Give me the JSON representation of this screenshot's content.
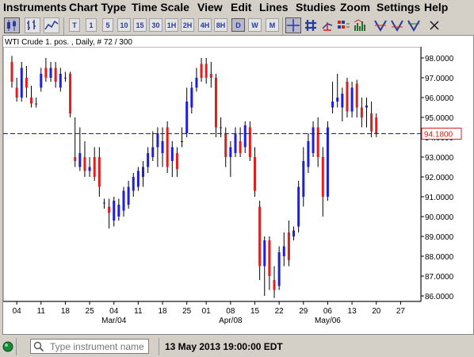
{
  "menu": [
    "Instruments",
    "Chart Type",
    "Time Scale",
    "View",
    "Edit",
    "Lines",
    "Studies",
    "Zoom",
    "Settings",
    "Help"
  ],
  "toolbar": {
    "timeframes": [
      "T",
      "1",
      "5",
      "10",
      "15",
      "30",
      "1H",
      "2H",
      "4H",
      "8H",
      "D",
      "W",
      "M"
    ],
    "active_timeframe": "D"
  },
  "chart": {
    "header": "WTI Crude 1. pos. , Daily, # 72 / 300",
    "price_label": "94.1800",
    "last_price": 94.18
  },
  "status": {
    "search_placeholder": "Type instrument name",
    "datetime": "13 May 2013 19:00:00 EDT"
  },
  "chart_data": {
    "type": "candlestick",
    "ylim": [
      85.6,
      98.4
    ],
    "y_ticks": [
      86,
      87,
      88,
      89,
      90,
      91,
      92,
      93,
      94,
      95,
      96,
      97,
      98
    ],
    "y_tick_labels": [
      "86.0000",
      "87.0000",
      "88.0000",
      "89.0000",
      "90.0000",
      "91.0000",
      "92.0000",
      "93.0000",
      "94.0000",
      "95.0000",
      "96.0000",
      "97.0000",
      "98.0000"
    ],
    "x_tick_labels": [
      {
        "label": "04",
        "index": 1
      },
      {
        "label": "11",
        "index": 6
      },
      {
        "label": "18",
        "index": 11
      },
      {
        "label": "25",
        "index": 16
      },
      {
        "label": "04",
        "index": 21
      },
      {
        "label": "11",
        "index": 26
      },
      {
        "label": "18",
        "index": 31
      },
      {
        "label": "25",
        "index": 36
      },
      {
        "label": "01",
        "index": 40
      },
      {
        "label": "08",
        "index": 45
      },
      {
        "label": "15",
        "index": 50
      },
      {
        "label": "22",
        "index": 55
      },
      {
        "label": "29",
        "index": 60
      },
      {
        "label": "06",
        "index": 65
      },
      {
        "label": "13",
        "index": 70
      },
      {
        "label": "20",
        "index": 75
      },
      {
        "label": "27",
        "index": 80
      }
    ],
    "month_labels": [
      {
        "label": "Mar/04",
        "index": 21
      },
      {
        "label": "Apr/08",
        "index": 45
      },
      {
        "label": "May/06",
        "index": 65
      }
    ],
    "candles": [
      {
        "o": 97.8,
        "h": 98.1,
        "l": 96.5,
        "c": 96.8
      },
      {
        "o": 96.5,
        "h": 97.0,
        "l": 95.8,
        "c": 96.0
      },
      {
        "o": 96.0,
        "h": 97.8,
        "l": 95.8,
        "c": 97.5
      },
      {
        "o": 97.0,
        "h": 97.6,
        "l": 96.0,
        "c": 96.5
      },
      {
        "o": 96.0,
        "h": 96.6,
        "l": 95.5,
        "c": 95.7
      },
      {
        "o": 95.7,
        "h": 96.0,
        "l": 95.5,
        "c": 95.7
      },
      {
        "o": 96.5,
        "h": 97.5,
        "l": 96.3,
        "c": 97.2
      },
      {
        "o": 97.5,
        "h": 98.0,
        "l": 96.8,
        "c": 97.0
      },
      {
        "o": 97.0,
        "h": 97.8,
        "l": 96.8,
        "c": 97.5
      },
      {
        "o": 97.5,
        "h": 97.8,
        "l": 96.5,
        "c": 96.8
      },
      {
        "o": 96.5,
        "h": 97.5,
        "l": 96.3,
        "c": 97.2
      },
      {
        "o": 97.0,
        "h": 97.3,
        "l": 96.8,
        "c": 97.0
      },
      {
        "o": 97.2,
        "h": 97.3,
        "l": 95.0,
        "c": 95.2
      },
      {
        "o": 93.0,
        "h": 95.0,
        "l": 92.5,
        "c": 92.8
      },
      {
        "o": 92.5,
        "h": 94.5,
        "l": 92.3,
        "c": 93.2
      },
      {
        "o": 93.0,
        "h": 93.8,
        "l": 92.0,
        "c": 92.3
      },
      {
        "o": 92.3,
        "h": 93.0,
        "l": 92.0,
        "c": 92.5
      },
      {
        "o": 93.0,
        "h": 93.5,
        "l": 91.8,
        "c": 92.0
      },
      {
        "o": 93.0,
        "h": 93.5,
        "l": 91.0,
        "c": 91.5
      },
      {
        "o": 90.7,
        "h": 90.9,
        "l": 90.4,
        "c": 90.7
      },
      {
        "o": 90.5,
        "h": 90.9,
        "l": 89.4,
        "c": 90.2
      },
      {
        "o": 89.8,
        "h": 91.0,
        "l": 89.5,
        "c": 90.8
      },
      {
        "o": 90.0,
        "h": 90.9,
        "l": 89.8,
        "c": 90.6
      },
      {
        "o": 90.3,
        "h": 91.5,
        "l": 90.0,
        "c": 91.3
      },
      {
        "o": 90.6,
        "h": 91.8,
        "l": 90.4,
        "c": 91.5
      },
      {
        "o": 91.3,
        "h": 92.2,
        "l": 91.0,
        "c": 92.0
      },
      {
        "o": 91.5,
        "h": 92.5,
        "l": 91.3,
        "c": 92.3
      },
      {
        "o": 92.0,
        "h": 92.8,
        "l": 91.5,
        "c": 92.5
      },
      {
        "o": 92.5,
        "h": 93.5,
        "l": 92.2,
        "c": 93.2
      },
      {
        "o": 93.0,
        "h": 94.3,
        "l": 92.8,
        "c": 93.5
      },
      {
        "o": 93.5,
        "h": 94.5,
        "l": 92.5,
        "c": 94.2
      },
      {
        "o": 93.2,
        "h": 94.5,
        "l": 92.5,
        "c": 93.8
      },
      {
        "o": 94.5,
        "h": 94.8,
        "l": 92.2,
        "c": 92.5
      },
      {
        "o": 92.8,
        "h": 93.8,
        "l": 92.0,
        "c": 93.5
      },
      {
        "o": 93.2,
        "h": 93.5,
        "l": 92.0,
        "c": 92.4
      },
      {
        "o": 93.8,
        "h": 94.5,
        "l": 93.5,
        "c": 93.8
      },
      {
        "o": 94.2,
        "h": 96.5,
        "l": 94.0,
        "c": 95.8
      },
      {
        "o": 95.5,
        "h": 96.8,
        "l": 95.2,
        "c": 96.5
      },
      {
        "o": 96.5,
        "h": 97.5,
        "l": 96.3,
        "c": 97.0
      },
      {
        "o": 97.7,
        "h": 98.0,
        "l": 96.8,
        "c": 97.0
      },
      {
        "o": 97.7,
        "h": 98.0,
        "l": 96.7,
        "c": 97.0
      },
      {
        "o": 97.2,
        "h": 97.8,
        "l": 96.5,
        "c": 97.0
      },
      {
        "o": 97.0,
        "h": 97.2,
        "l": 94.0,
        "c": 94.5
      },
      {
        "o": 94.5,
        "h": 95.0,
        "l": 94.0,
        "c": 94.5
      },
      {
        "o": 94.2,
        "h": 94.5,
        "l": 92.5,
        "c": 93.0
      },
      {
        "o": 93.0,
        "h": 93.8,
        "l": 92.0,
        "c": 93.5
      },
      {
        "o": 93.2,
        "h": 94.5,
        "l": 93.0,
        "c": 94.2
      },
      {
        "o": 93.8,
        "h": 94.5,
        "l": 93.0,
        "c": 93.2
      },
      {
        "o": 93.5,
        "h": 94.8,
        "l": 93.2,
        "c": 94.6
      },
      {
        "o": 94.5,
        "h": 94.8,
        "l": 92.8,
        "c": 93.0
      },
      {
        "o": 93.0,
        "h": 93.5,
        "l": 91.0,
        "c": 91.3
      },
      {
        "o": 90.5,
        "h": 90.8,
        "l": 86.8,
        "c": 87.5
      },
      {
        "o": 87.5,
        "h": 89.0,
        "l": 86.0,
        "c": 88.8
      },
      {
        "o": 88.8,
        "h": 89.0,
        "l": 86.3,
        "c": 87.0
      },
      {
        "o": 86.8,
        "h": 87.5,
        "l": 85.9,
        "c": 86.3
      },
      {
        "o": 86.5,
        "h": 88.5,
        "l": 86.3,
        "c": 88.2
      },
      {
        "o": 88.0,
        "h": 89.2,
        "l": 87.5,
        "c": 88.5
      },
      {
        "o": 89.2,
        "h": 89.8,
        "l": 87.5,
        "c": 87.8
      },
      {
        "o": 89.0,
        "h": 89.5,
        "l": 88.8,
        "c": 89.3
      },
      {
        "o": 89.5,
        "h": 91.8,
        "l": 89.2,
        "c": 91.5
      },
      {
        "o": 91.0,
        "h": 93.5,
        "l": 90.5,
        "c": 92.8
      },
      {
        "o": 92.5,
        "h": 94.2,
        "l": 92.2,
        "c": 93.8
      },
      {
        "o": 93.2,
        "h": 94.8,
        "l": 93.0,
        "c": 94.5
      },
      {
        "o": 94.5,
        "h": 95.0,
        "l": 92.5,
        "c": 93.0
      },
      {
        "o": 93.0,
        "h": 93.5,
        "l": 90.0,
        "c": 91.0
      },
      {
        "o": 91.0,
        "h": 94.8,
        "l": 90.8,
        "c": 94.5
      },
      {
        "o": 95.5,
        "h": 96.8,
        "l": 95.2,
        "c": 95.8
      },
      {
        "o": 95.8,
        "h": 97.2,
        "l": 95.5,
        "c": 96.0
      },
      {
        "o": 95.5,
        "h": 96.5,
        "l": 94.8,
        "c": 96.2
      },
      {
        "o": 96.8,
        "h": 97.0,
        "l": 95.0,
        "c": 95.3
      },
      {
        "o": 95.3,
        "h": 96.8,
        "l": 95.0,
        "c": 96.5
      },
      {
        "o": 96.7,
        "h": 96.9,
        "l": 95.0,
        "c": 95.5
      },
      {
        "o": 95.5,
        "h": 96.0,
        "l": 94.5,
        "c": 95.0
      },
      {
        "o": 95.5,
        "h": 96.0,
        "l": 94.5,
        "c": 95.6
      },
      {
        "o": 95.2,
        "h": 95.8,
        "l": 94.0,
        "c": 94.3
      },
      {
        "o": 95.0,
        "h": 95.2,
        "l": 94.0,
        "c": 94.2
      }
    ]
  }
}
